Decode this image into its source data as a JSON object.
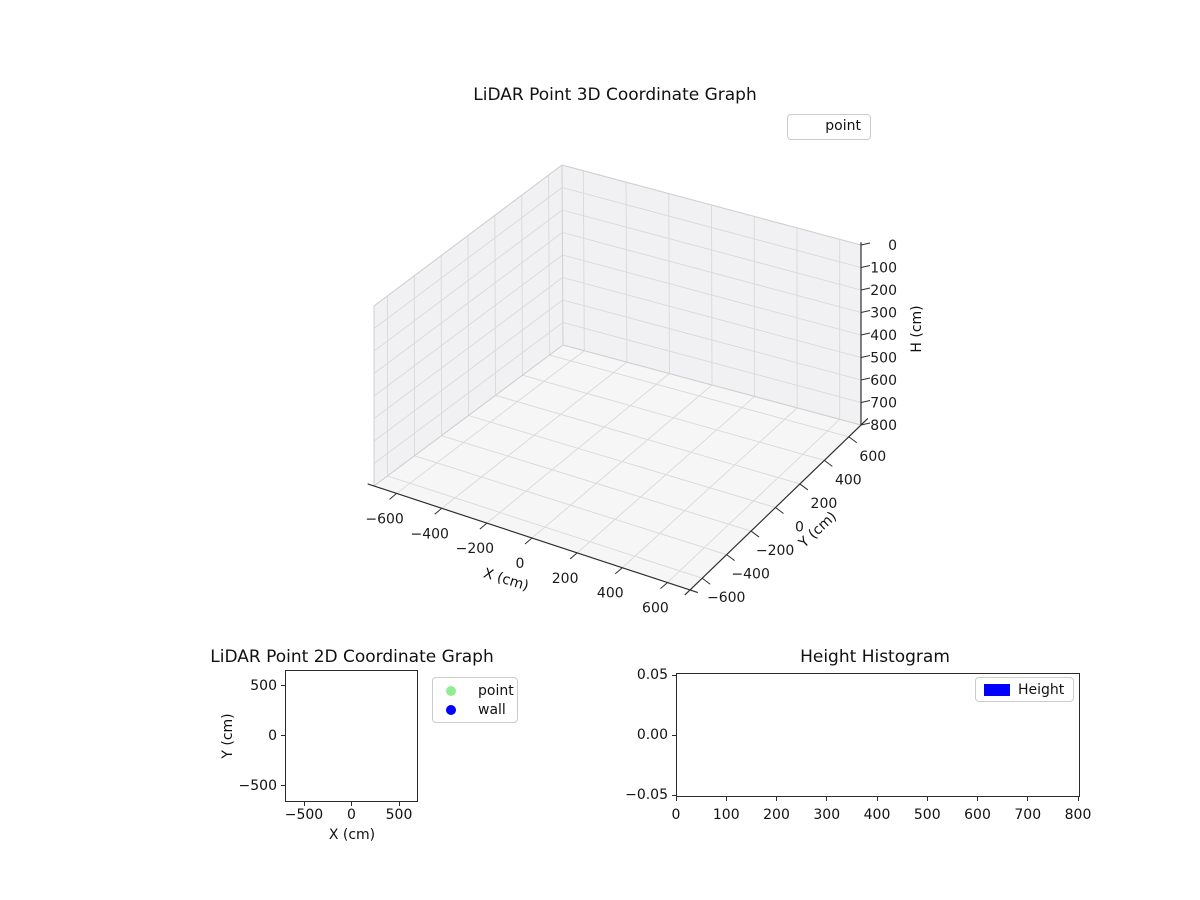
{
  "figure": {
    "background": "#ffffff"
  },
  "plot3d": {
    "title": "LiDAR Point 3D Coordinate Graph",
    "xlabel": "X (cm)",
    "ylabel": "Y (cm)",
    "zlabel": "H (cm)",
    "legend_label": "point",
    "x_tick_labels": [
      "−600",
      "−400",
      "−200",
      "0",
      "200",
      "400",
      "600"
    ],
    "y_tick_labels": [
      "−600",
      "−400",
      "−200",
      "0",
      "200",
      "400",
      "600"
    ],
    "h_tick_labels": [
      "0",
      "100",
      "200",
      "300",
      "400",
      "500",
      "600",
      "700",
      "800"
    ]
  },
  "plot2d": {
    "title": "LiDAR Point 2D Coordinate Graph",
    "xlabel": "X (cm)",
    "ylabel": "Y (cm)",
    "x_tick_labels": [
      "−500",
      "0",
      "500"
    ],
    "y_tick_labels": [
      "500",
      "0",
      "−500"
    ],
    "legend": [
      {
        "label": "point",
        "color": "#90ee90"
      },
      {
        "label": "wall",
        "color": "#0000ff"
      }
    ]
  },
  "hist": {
    "title": "Height Histogram",
    "x_tick_labels": [
      "0",
      "100",
      "200",
      "300",
      "400",
      "500",
      "600",
      "700",
      "800"
    ],
    "y_tick_labels": [
      "0.05",
      "0.00",
      "−0.05"
    ],
    "legend": {
      "label": "Height",
      "color": "#0000ff"
    }
  },
  "chart_data": [
    {
      "type": "scatter",
      "projection": "3d",
      "title": "LiDAR Point 3D Coordinate Graph",
      "xlabel": "X (cm)",
      "ylabel": "Y (cm)",
      "zlabel": "H (cm)",
      "xlim": [
        -700,
        700
      ],
      "ylim": [
        -700,
        700
      ],
      "zlim": [
        0,
        800
      ],
      "zaxis_inverted": true,
      "x_ticks": [
        -600,
        -400,
        -200,
        0,
        200,
        400,
        600
      ],
      "y_ticks": [
        -600,
        -400,
        -200,
        0,
        200,
        400,
        600
      ],
      "z_ticks": [
        0,
        100,
        200,
        300,
        400,
        500,
        600,
        700,
        800
      ],
      "grid": true,
      "legend_entries": [
        "point"
      ],
      "legend_position": "upper right",
      "series": [
        {
          "name": "point",
          "points": []
        }
      ]
    },
    {
      "type": "scatter",
      "title": "LiDAR Point 2D Coordinate Graph",
      "xlabel": "X (cm)",
      "ylabel": "Y (cm)",
      "xlim": [
        -700,
        700
      ],
      "ylim": [
        -700,
        700
      ],
      "x_ticks": [
        -500,
        0,
        500
      ],
      "y_ticks": [
        500,
        0,
        -500
      ],
      "grid": false,
      "legend_entries": [
        "point",
        "wall"
      ],
      "legend_position": "outside right",
      "series": [
        {
          "name": "point",
          "color": "#90ee90",
          "points": []
        },
        {
          "name": "wall",
          "color": "#0000ff",
          "points": []
        }
      ]
    },
    {
      "type": "bar",
      "subtype": "histogram",
      "title": "Height Histogram",
      "xlabel": "",
      "ylabel": "",
      "xlim": [
        0,
        800
      ],
      "ylim": [
        -0.055,
        0.055
      ],
      "x_ticks": [
        0,
        100,
        200,
        300,
        400,
        500,
        600,
        700,
        800
      ],
      "y_ticks": [
        0.05,
        0.0,
        -0.05
      ],
      "grid": false,
      "legend_entries": [
        "Height"
      ],
      "legend_position": "upper right",
      "series": [
        {
          "name": "Height",
          "color": "#0000ff",
          "values": []
        }
      ]
    }
  ]
}
